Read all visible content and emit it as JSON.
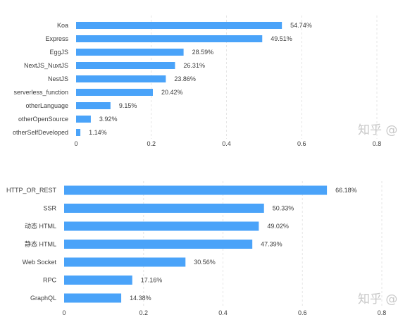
{
  "colors": {
    "bar": "#4aa3f9",
    "grid": "#e6e6e6",
    "text": "#3d3d3d",
    "watermark": "#c8c8c8"
  },
  "watermark": "知乎 @",
  "chart_data": [
    {
      "type": "bar",
      "orientation": "horizontal",
      "categories": [
        "Koa",
        "Express",
        "EggJS",
        "NextJS_NuxtJS",
        "NestJS",
        "serverless_function",
        "otherLanguage",
        "otherOpenSource",
        "otherSelfDeveloped"
      ],
      "values": [
        0.5474,
        0.4951,
        0.2859,
        0.2631,
        0.2386,
        0.2042,
        0.0915,
        0.0392,
        0.0114
      ],
      "value_labels": [
        "54.74%",
        "49.51%",
        "28.59%",
        "26.31%",
        "23.86%",
        "20.42%",
        "9.15%",
        "3.92%",
        "1.14%"
      ],
      "xticks": [
        "0",
        "0.2",
        "0.4",
        "0.6",
        "0.8"
      ],
      "xlim": [
        0,
        0.8
      ],
      "grid": "vertical dashed"
    },
    {
      "type": "bar",
      "orientation": "horizontal",
      "categories": [
        "HTTP_OR_REST",
        "SSR",
        "动态 HTML",
        "静态 HTML",
        "Web Socket",
        "RPC",
        "GraphQL"
      ],
      "values": [
        0.6618,
        0.5033,
        0.4902,
        0.4739,
        0.3056,
        0.1716,
        0.1438
      ],
      "value_labels": [
        "66.18%",
        "50.33%",
        "49.02%",
        "47.39%",
        "30.56%",
        "17.16%",
        "14.38%"
      ],
      "xticks": [
        "0",
        "0.2",
        "0.4",
        "0.6",
        "0.8"
      ],
      "xlim": [
        0,
        0.8
      ],
      "grid": "vertical dashed"
    }
  ]
}
